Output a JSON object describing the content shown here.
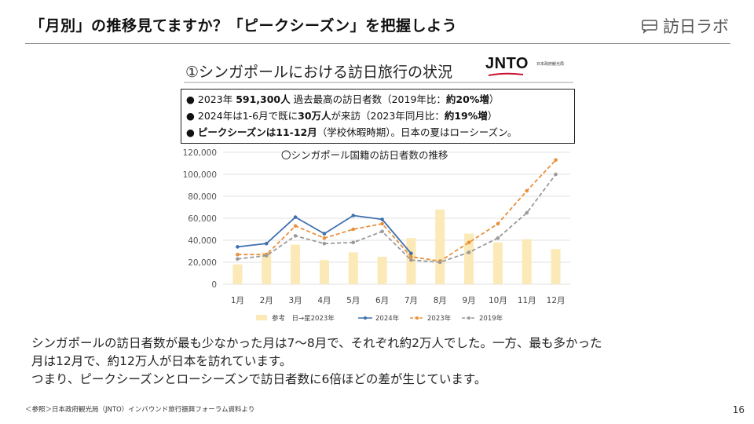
{
  "header": {
    "title": "「月別」の推移見てますか？「ピークシーズン」を把握しよう",
    "brand": "訪日ラボ",
    "brand_icon": "speech-bubble-icon"
  },
  "figure": {
    "title": "①シンガポールにおける訪日旅行の状況",
    "jnto_logo": "JNTO",
    "jnto_sub": "日本政府観光局",
    "bullets": [
      {
        "pre": "2023年 ",
        "bold": "591,300人",
        "post": " 過去最高の訪日者数（2019年比：",
        "bold2": "約20%増",
        "post2": "）"
      },
      {
        "pre": "2024年は1-6月で既に",
        "bold": "30万人",
        "post": "が来訪（2023年同月比：",
        "bold2": "約19%増",
        "post2": "）"
      },
      {
        "pre": "",
        "bold": "ピークシーズンは11-12月",
        "post": "（学校休暇時期）。日本の夏はローシーズン。",
        "bold2": "",
        "post2": ""
      }
    ]
  },
  "chart_data": {
    "type": "bar+line",
    "title": "〇シンガポール国籍の訪日者数の推移",
    "categories": [
      "1月",
      "2月",
      "3月",
      "4月",
      "5月",
      "6月",
      "7月",
      "8月",
      "9月",
      "10月",
      "11月",
      "12月"
    ],
    "ylim": [
      0,
      120000
    ],
    "yticks": [
      0,
      20000,
      40000,
      60000,
      80000,
      100000,
      120000
    ],
    "ytick_labels": [
      "0",
      "20,000",
      "40,000",
      "60,000",
      "80,000",
      "100,000",
      "120,000"
    ],
    "bars": {
      "name": "参考　日→星2023年",
      "color": "#fbe9b7",
      "values": [
        18000,
        29000,
        36000,
        22000,
        29000,
        25000,
        42000,
        68000,
        46000,
        38000,
        41000,
        32000
      ]
    },
    "series": [
      {
        "name": "2024年",
        "color": "#3f6fb0",
        "style": "solid",
        "values": [
          34000,
          37000,
          61000,
          46000,
          62500,
          59000,
          28000,
          null,
          null,
          null,
          null,
          null
        ]
      },
      {
        "name": "2023年",
        "color": "#e8913d",
        "style": "dashed",
        "values": [
          27000,
          27000,
          53000,
          42000,
          50000,
          55000,
          25000,
          21000,
          38000,
          55000,
          85000,
          113000
        ]
      },
      {
        "name": "2019年",
        "color": "#9a9a9a",
        "style": "dashed",
        "values": [
          23000,
          26000,
          44000,
          37000,
          38000,
          48000,
          22000,
          20000,
          29000,
          42000,
          65000,
          100000
        ]
      }
    ]
  },
  "body": {
    "line1": "シンガポールの訪日者数が最も少なかった月は7〜8月で、それぞれ約2万人でした。一方、最も多かった",
    "line2": "月は12月で、約12万人が日本を訪れています。",
    "line3": "つまり、ピークシーズンとローシーズンで訪日者数に6倍ほどの差が生じています。"
  },
  "footer": {
    "source": "＜参照＞日本政府観光局（JNTO）インバウンド旅行振興フォーラム資料より",
    "page": "16"
  }
}
